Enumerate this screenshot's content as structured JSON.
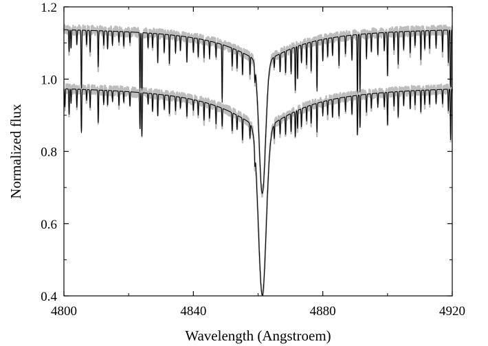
{
  "chart_data": {
    "type": "line",
    "xlabel": "Wavelength (Angstroem)",
    "ylabel": "Normalized flux",
    "xlim": [
      4800,
      4920
    ],
    "ylim": [
      0.4,
      1.2
    ],
    "x_ticks": [
      4800,
      4840,
      4880,
      4920
    ],
    "x_tick_labels": [
      "4800",
      "4840",
      "4880",
      "4920"
    ],
    "y_ticks": [
      0.4,
      0.6,
      0.8,
      1.0,
      1.2
    ],
    "y_tick_labels": [
      "0.4",
      "0.6",
      "0.8",
      "1.0",
      "1.2"
    ],
    "grid": false,
    "legend": "none",
    "colors": {
      "observed": "#bdbdbd",
      "model": "#000000",
      "axes": "#000000"
    },
    "series": [
      {
        "continuum": 1.145,
        "profile": {
          "center": 4861.3,
          "depth": 0.32,
          "core_width": 1.0,
          "wing_width": 13.0
        },
        "lines": [
          [
            4801.6,
            0.06
          ],
          [
            4802.2,
            0.05
          ],
          [
            4804.0,
            0.04
          ],
          [
            4805.4,
            0.19
          ],
          [
            4807.0,
            0.04
          ],
          [
            4808.1,
            0.06
          ],
          [
            4810.6,
            0.1
          ],
          [
            4812.3,
            0.04
          ],
          [
            4813.5,
            0.05
          ],
          [
            4815.0,
            0.04
          ],
          [
            4817.0,
            0.03
          ],
          [
            4818.5,
            0.04
          ],
          [
            4820.4,
            0.03
          ],
          [
            4823.5,
            0.17
          ],
          [
            4824.1,
            0.22
          ],
          [
            4826.0,
            0.04
          ],
          [
            4827.4,
            0.04
          ],
          [
            4829.0,
            0.08
          ],
          [
            4831.0,
            0.05
          ],
          [
            4832.6,
            0.08
          ],
          [
            4834.5,
            0.05
          ],
          [
            4836.0,
            0.04
          ],
          [
            4838.0,
            0.07
          ],
          [
            4840.0,
            0.04
          ],
          [
            4841.5,
            0.05
          ],
          [
            4843.3,
            0.05
          ],
          [
            4845.0,
            0.05
          ],
          [
            4847.0,
            0.04
          ],
          [
            4848.9,
            0.16
          ],
          [
            4852.0,
            0.05
          ],
          [
            4853.5,
            0.05
          ],
          [
            4855.2,
            0.06
          ],
          [
            4857.5,
            0.05
          ],
          [
            4859.0,
            0.04
          ],
          [
            4865.0,
            0.03
          ],
          [
            4866.8,
            0.05
          ],
          [
            4868.5,
            0.06
          ],
          [
            4870.2,
            0.07
          ],
          [
            4871.5,
            0.12
          ],
          [
            4872.2,
            0.09
          ],
          [
            4873.4,
            0.05
          ],
          [
            4875.0,
            0.06
          ],
          [
            4876.4,
            0.08
          ],
          [
            4878.2,
            0.14
          ],
          [
            4880.0,
            0.06
          ],
          [
            4881.5,
            0.05
          ],
          [
            4883.0,
            0.05
          ],
          [
            4885.0,
            0.08
          ],
          [
            4887.0,
            0.05
          ],
          [
            4889.0,
            0.07
          ],
          [
            4890.7,
            0.19
          ],
          [
            4891.5,
            0.16
          ],
          [
            4893.5,
            0.07
          ],
          [
            4895.0,
            0.05
          ],
          [
            4897.0,
            0.06
          ],
          [
            4899.0,
            0.05
          ],
          [
            4900.0,
            0.12
          ],
          [
            4902.0,
            0.05
          ],
          [
            4903.3,
            0.09
          ],
          [
            4905.0,
            0.05
          ],
          [
            4907.0,
            0.06
          ],
          [
            4908.5,
            0.04
          ],
          [
            4910.3,
            0.08
          ],
          [
            4911.5,
            0.05
          ],
          [
            4913.0,
            0.05
          ],
          [
            4915.0,
            0.05
          ],
          [
            4917.0,
            0.06
          ],
          [
            4918.8,
            0.09
          ],
          [
            4919.5,
            0.3
          ]
        ]
      },
      {
        "continuum": 0.985,
        "profile": {
          "center": 4861.3,
          "depth": 0.47,
          "core_width": 1.2,
          "wing_width": 14.0
        },
        "lines": [
          [
            4800.3,
            0.05
          ],
          [
            4801.6,
            0.07
          ],
          [
            4802.2,
            0.04
          ],
          [
            4804.0,
            0.05
          ],
          [
            4805.4,
            0.12
          ],
          [
            4807.0,
            0.03
          ],
          [
            4808.1,
            0.05
          ],
          [
            4810.6,
            0.09
          ],
          [
            4812.3,
            0.04
          ],
          [
            4813.5,
            0.04
          ],
          [
            4815.0,
            0.03
          ],
          [
            4817.0,
            0.04
          ],
          [
            4818.5,
            0.03
          ],
          [
            4820.4,
            0.04
          ],
          [
            4823.5,
            0.1
          ],
          [
            4824.1,
            0.12
          ],
          [
            4826.0,
            0.03
          ],
          [
            4827.4,
            0.05
          ],
          [
            4829.0,
            0.06
          ],
          [
            4831.0,
            0.04
          ],
          [
            4832.6,
            0.05
          ],
          [
            4834.5,
            0.04
          ],
          [
            4836.0,
            0.03
          ],
          [
            4838.0,
            0.05
          ],
          [
            4840.0,
            0.03
          ],
          [
            4841.5,
            0.04
          ],
          [
            4843.3,
            0.05
          ],
          [
            4845.0,
            0.04
          ],
          [
            4847.0,
            0.05
          ],
          [
            4848.9,
            0.05
          ],
          [
            4852.0,
            0.05
          ],
          [
            4853.5,
            0.04
          ],
          [
            4855.2,
            0.06
          ],
          [
            4857.5,
            0.04
          ],
          [
            4859.0,
            0.04
          ],
          [
            4865.0,
            0.04
          ],
          [
            4866.8,
            0.04
          ],
          [
            4868.5,
            0.05
          ],
          [
            4870.2,
            0.05
          ],
          [
            4871.5,
            0.07
          ],
          [
            4872.2,
            0.05
          ],
          [
            4873.4,
            0.05
          ],
          [
            4875.0,
            0.04
          ],
          [
            4876.4,
            0.05
          ],
          [
            4878.2,
            0.08
          ],
          [
            4880.0,
            0.04
          ],
          [
            4881.5,
            0.04
          ],
          [
            4883.0,
            0.05
          ],
          [
            4885.0,
            0.05
          ],
          [
            4887.0,
            0.04
          ],
          [
            4889.0,
            0.05
          ],
          [
            4890.7,
            0.11
          ],
          [
            4891.5,
            0.09
          ],
          [
            4893.5,
            0.05
          ],
          [
            4895.0,
            0.04
          ],
          [
            4897.0,
            0.04
          ],
          [
            4899.0,
            0.04
          ],
          [
            4900.0,
            0.09
          ],
          [
            4902.0,
            0.04
          ],
          [
            4903.3,
            0.07
          ],
          [
            4905.0,
            0.04
          ],
          [
            4907.0,
            0.05
          ],
          [
            4908.5,
            0.04
          ],
          [
            4910.3,
            0.06
          ],
          [
            4911.5,
            0.04
          ],
          [
            4913.0,
            0.04
          ],
          [
            4915.0,
            0.04
          ],
          [
            4917.0,
            0.04
          ],
          [
            4918.8,
            0.06
          ],
          [
            4919.5,
            0.14
          ]
        ]
      }
    ]
  }
}
